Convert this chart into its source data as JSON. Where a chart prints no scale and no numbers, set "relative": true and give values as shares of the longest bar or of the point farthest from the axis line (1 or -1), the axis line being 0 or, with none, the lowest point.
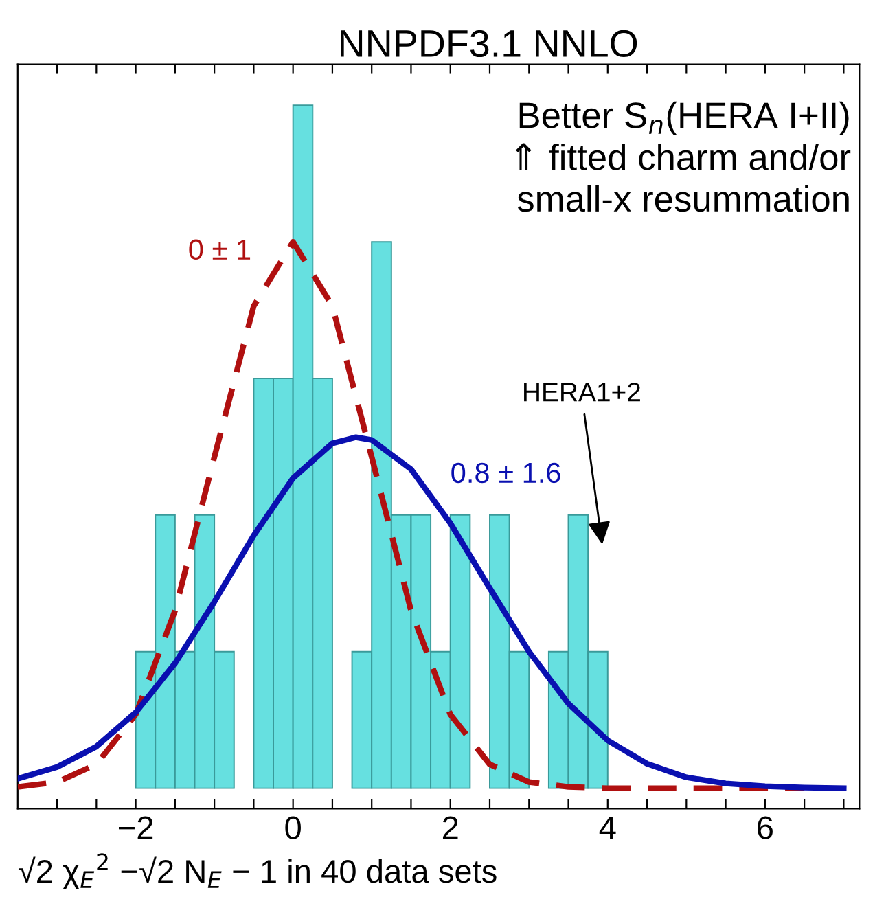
{
  "chart_data": {
    "type": "histogram",
    "title": "NNPDF3.1 NNLO",
    "xlabel": "√2 χ$_{E}$$^{2}$ −√2 N$_{E}$ − 1 in 40 data sets",
    "relative": true,
    "bins": [
      -2,
      -1.75,
      -1.5,
      -1.25,
      -1,
      -0.75,
      -0.5,
      -0.25,
      0,
      0.25,
      0.5,
      0.75,
      1,
      1.25,
      1.5,
      1.75,
      2,
      2.25,
      2.5,
      2.75,
      3,
      3.25,
      3.5,
      3.75,
      4
    ],
    "values": [
      0.2,
      0.4,
      0.2,
      0.4,
      0.2,
      0,
      0.6,
      0.6,
      1,
      0.6,
      0,
      0.2,
      0.8,
      0.4,
      0.4,
      0.2,
      0.4,
      0,
      0.4,
      0.2,
      0,
      0.2,
      0.4,
      0.2
    ],
    "color": "#66e0e0",
    "series": [
      {
        "type": "line",
        "color": "#b01010",
        "line_style": "dashed",
        "x": [
          -3.5,
          -3,
          -2.5,
          -2,
          -1.5,
          -1,
          -0.5,
          0,
          0.5,
          1,
          1.5,
          2,
          2.5,
          3,
          3.5,
          4,
          5,
          6,
          6.5
        ],
        "values": [
          0.002,
          0.009,
          0.035,
          0.108,
          0.26,
          0.485,
          0.706,
          0.8,
          0.706,
          0.485,
          0.26,
          0.108,
          0.035,
          0.009,
          0.002,
          0,
          0,
          0,
          0
        ]
      },
      {
        "type": "line",
        "color": "#0a10b0",
        "line_style": "solid",
        "x": [
          -3.5,
          -3,
          -2.5,
          -2,
          -1.5,
          -1,
          -0.5,
          0,
          0.5,
          0.8,
          1,
          1.5,
          2,
          2.5,
          3,
          3.5,
          4,
          4.5,
          5,
          5.5,
          6,
          6.5,
          7
        ],
        "values": [
          0.014,
          0.031,
          0.061,
          0.111,
          0.183,
          0.273,
          0.37,
          0.454,
          0.505,
          0.514,
          0.51,
          0.467,
          0.388,
          0.293,
          0.2,
          0.124,
          0.07,
          0.036,
          0.016,
          0.007,
          0.003,
          0.001,
          0
        ]
      }
    ],
    "xlim": [
      -3.5,
      7.2
    ],
    "xticks": [
      {
        "value": -3,
        "label": null
      },
      {
        "value": -2.5,
        "label": null
      },
      {
        "value": -2,
        "label": "−2"
      },
      {
        "value": -1.5,
        "label": null
      },
      {
        "value": -1,
        "label": null
      },
      {
        "value": -0.5,
        "label": null
      },
      0,
      {
        "value": 0.5,
        "label": null
      },
      {
        "value": 1,
        "label": null
      },
      {
        "value": 1.5,
        "label": null
      },
      2,
      {
        "value": 2.5,
        "label": null
      },
      {
        "value": 3,
        "label": null
      },
      {
        "value": 3.5,
        "label": null
      },
      4,
      {
        "value": 4.5,
        "label": null
      },
      {
        "value": 5,
        "label": null
      },
      {
        "value": 5.5,
        "label": null
      },
      6,
      {
        "value": 6.5,
        "label": null
      },
      {
        "value": 7,
        "label": null
      }
    ],
    "annotations": [
      "0 ± 1",
      "0.8 ± 1.6",
      "HERA1+2",
      "Better S$_{n}$(HERA I+II)\n⇑ fitted charm and/or\nsmall-x resummation"
    ],
    "grid": false,
    "legend": false
  }
}
